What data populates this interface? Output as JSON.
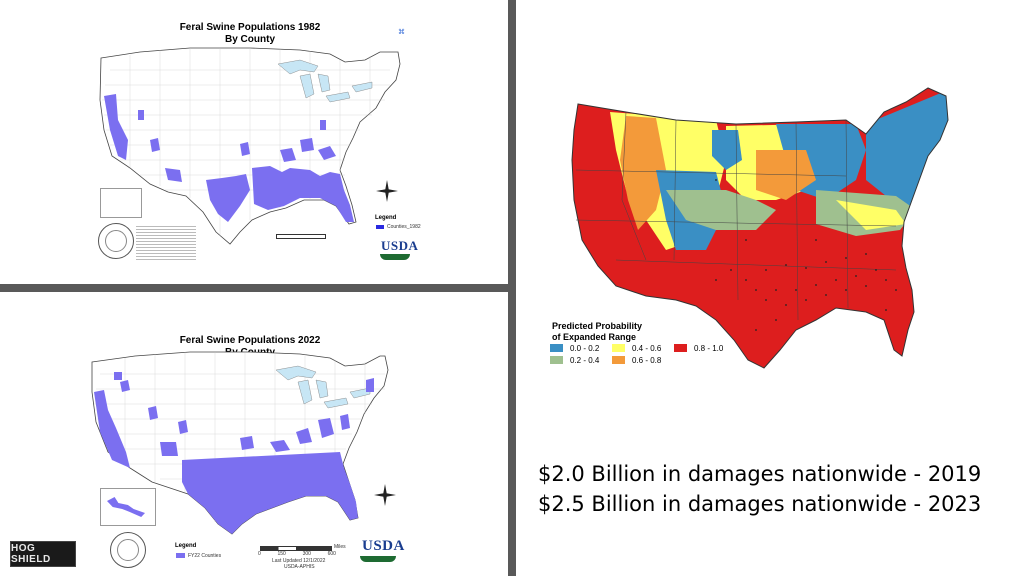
{
  "map1982": {
    "title_line1": "Feral Swine Populations 1982",
    "title_line2": "By County",
    "legend_label": "Legend",
    "legend_item": "Counties_1982",
    "agency": "USDA",
    "color_land": "#ffffff",
    "color_swine": "#7b6ff0",
    "color_lakes": "#c7e6f5"
  },
  "map2022": {
    "title_line1": "Feral Swine Populations 2022",
    "title_line2": "By County",
    "legend_label": "Legend",
    "legend_item": "FY22 Counties",
    "scale_ticks": [
      "0",
      "150",
      "300",
      "600"
    ],
    "scale_unit": "Miles",
    "last_updated": "Last Updated 12/1/2022",
    "source": "USDA-APHIS",
    "agency": "USDA",
    "color_swine": "#7b6ff0"
  },
  "probability_map": {
    "legend_title_line1": "Predicted Probability",
    "legend_title_line2": "of Expanded Range",
    "classes": [
      {
        "label": "0.0 - 0.2",
        "color": "#3a8fc4"
      },
      {
        "label": "0.2 - 0.4",
        "color": "#9fc08f"
      },
      {
        "label": "0.4 - 0.6",
        "color": "#ffff66"
      },
      {
        "label": "0.6 - 0.8",
        "color": "#f39a3a"
      },
      {
        "label": "0.8 - 1.0",
        "color": "#dd1e1e"
      }
    ]
  },
  "damages": {
    "line1": "$2.0 Billion in damages nationwide - 2019",
    "line2": "$2.5 Billion in damages nationwide - 2023"
  },
  "logo": {
    "text": "HOG SHIELD"
  }
}
